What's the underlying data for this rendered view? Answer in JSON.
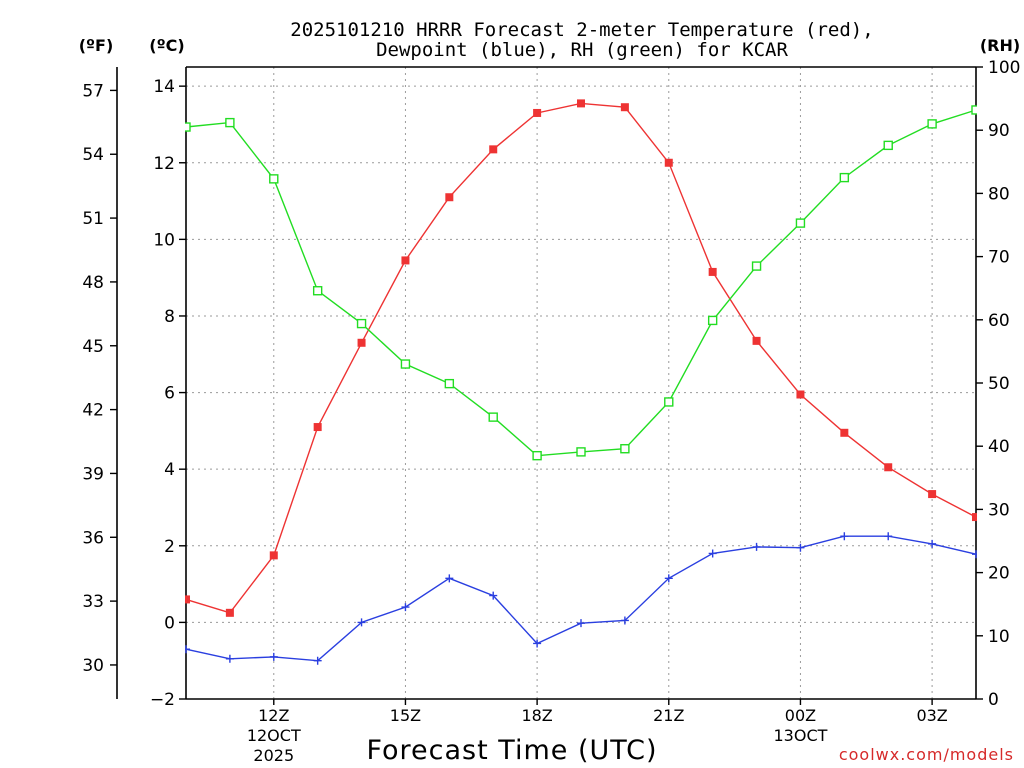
{
  "chart_data": {
    "type": "line",
    "title_line1": "2025101210 HRRR Forecast 2-meter Temperature (red),",
    "title_line2": "Dewpoint (blue), RH (green) for KCAR",
    "xlabel": "Forecast Time (UTC)",
    "credit": "coolwx.com/models",
    "unit_labels": {
      "fahrenheit": "(ºF)",
      "celsius": "(ºC)",
      "rh": "(RH)"
    },
    "x_hours_utc": [
      10,
      11,
      12,
      13,
      14,
      15,
      16,
      17,
      18,
      19,
      20,
      21,
      22,
      23,
      24,
      25,
      26,
      27,
      28
    ],
    "xlim": [
      10,
      28
    ],
    "x_ticks": [
      {
        "hour": 12,
        "label": "12Z",
        "sub1": "12OCT",
        "sub2": "2025"
      },
      {
        "hour": 15,
        "label": "15Z",
        "sub1": "",
        "sub2": ""
      },
      {
        "hour": 18,
        "label": "18Z",
        "sub1": "",
        "sub2": ""
      },
      {
        "hour": 21,
        "label": "21Z",
        "sub1": "",
        "sub2": ""
      },
      {
        "hour": 24,
        "label": "00Z",
        "sub1": "13OCT",
        "sub2": ""
      },
      {
        "hour": 27,
        "label": "03Z",
        "sub1": "",
        "sub2": ""
      }
    ],
    "celsius_axis": {
      "ylim": [
        -2,
        14.5
      ],
      "ticks": [
        -2,
        0,
        2,
        4,
        6,
        8,
        10,
        12,
        14
      ]
    },
    "fahrenheit_ticks": [
      30,
      33,
      36,
      39,
      42,
      45,
      48,
      51,
      54,
      57
    ],
    "rh_axis": {
      "ylim": [
        0,
        100
      ],
      "ticks": [
        0,
        10,
        20,
        30,
        40,
        50,
        60,
        70,
        80,
        90,
        100
      ]
    },
    "series": [
      {
        "name": "Temperature",
        "axis": "celsius",
        "color": "#ee3333",
        "marker": "filled-square",
        "values": [
          0.6,
          0.25,
          1.75,
          5.1,
          7.3,
          9.45,
          11.1,
          12.35,
          13.3,
          13.55,
          13.45,
          12.0,
          9.15,
          7.35,
          5.95,
          4.95,
          4.05,
          3.35,
          2.75
        ]
      },
      {
        "name": "Dewpoint",
        "axis": "celsius",
        "color": "#2a3fe0",
        "marker": "plus",
        "values": [
          -0.7,
          -0.95,
          -0.9,
          -1.0,
          0.0,
          0.4,
          1.15,
          0.7,
          -0.55,
          -0.02,
          0.05,
          1.15,
          1.8,
          1.97,
          1.95,
          2.25,
          2.25,
          2.05,
          1.78
        ]
      },
      {
        "name": "RH",
        "axis": "rh",
        "color": "#22dd22",
        "marker": "open-square",
        "values": [
          90.5,
          91.2,
          82.3,
          64.6,
          59.4,
          53.0,
          49.9,
          44.6,
          38.5,
          39.1,
          39.6,
          47.0,
          59.9,
          68.5,
          75.3,
          82.5,
          87.6,
          91.0,
          93.2
        ]
      }
    ]
  }
}
